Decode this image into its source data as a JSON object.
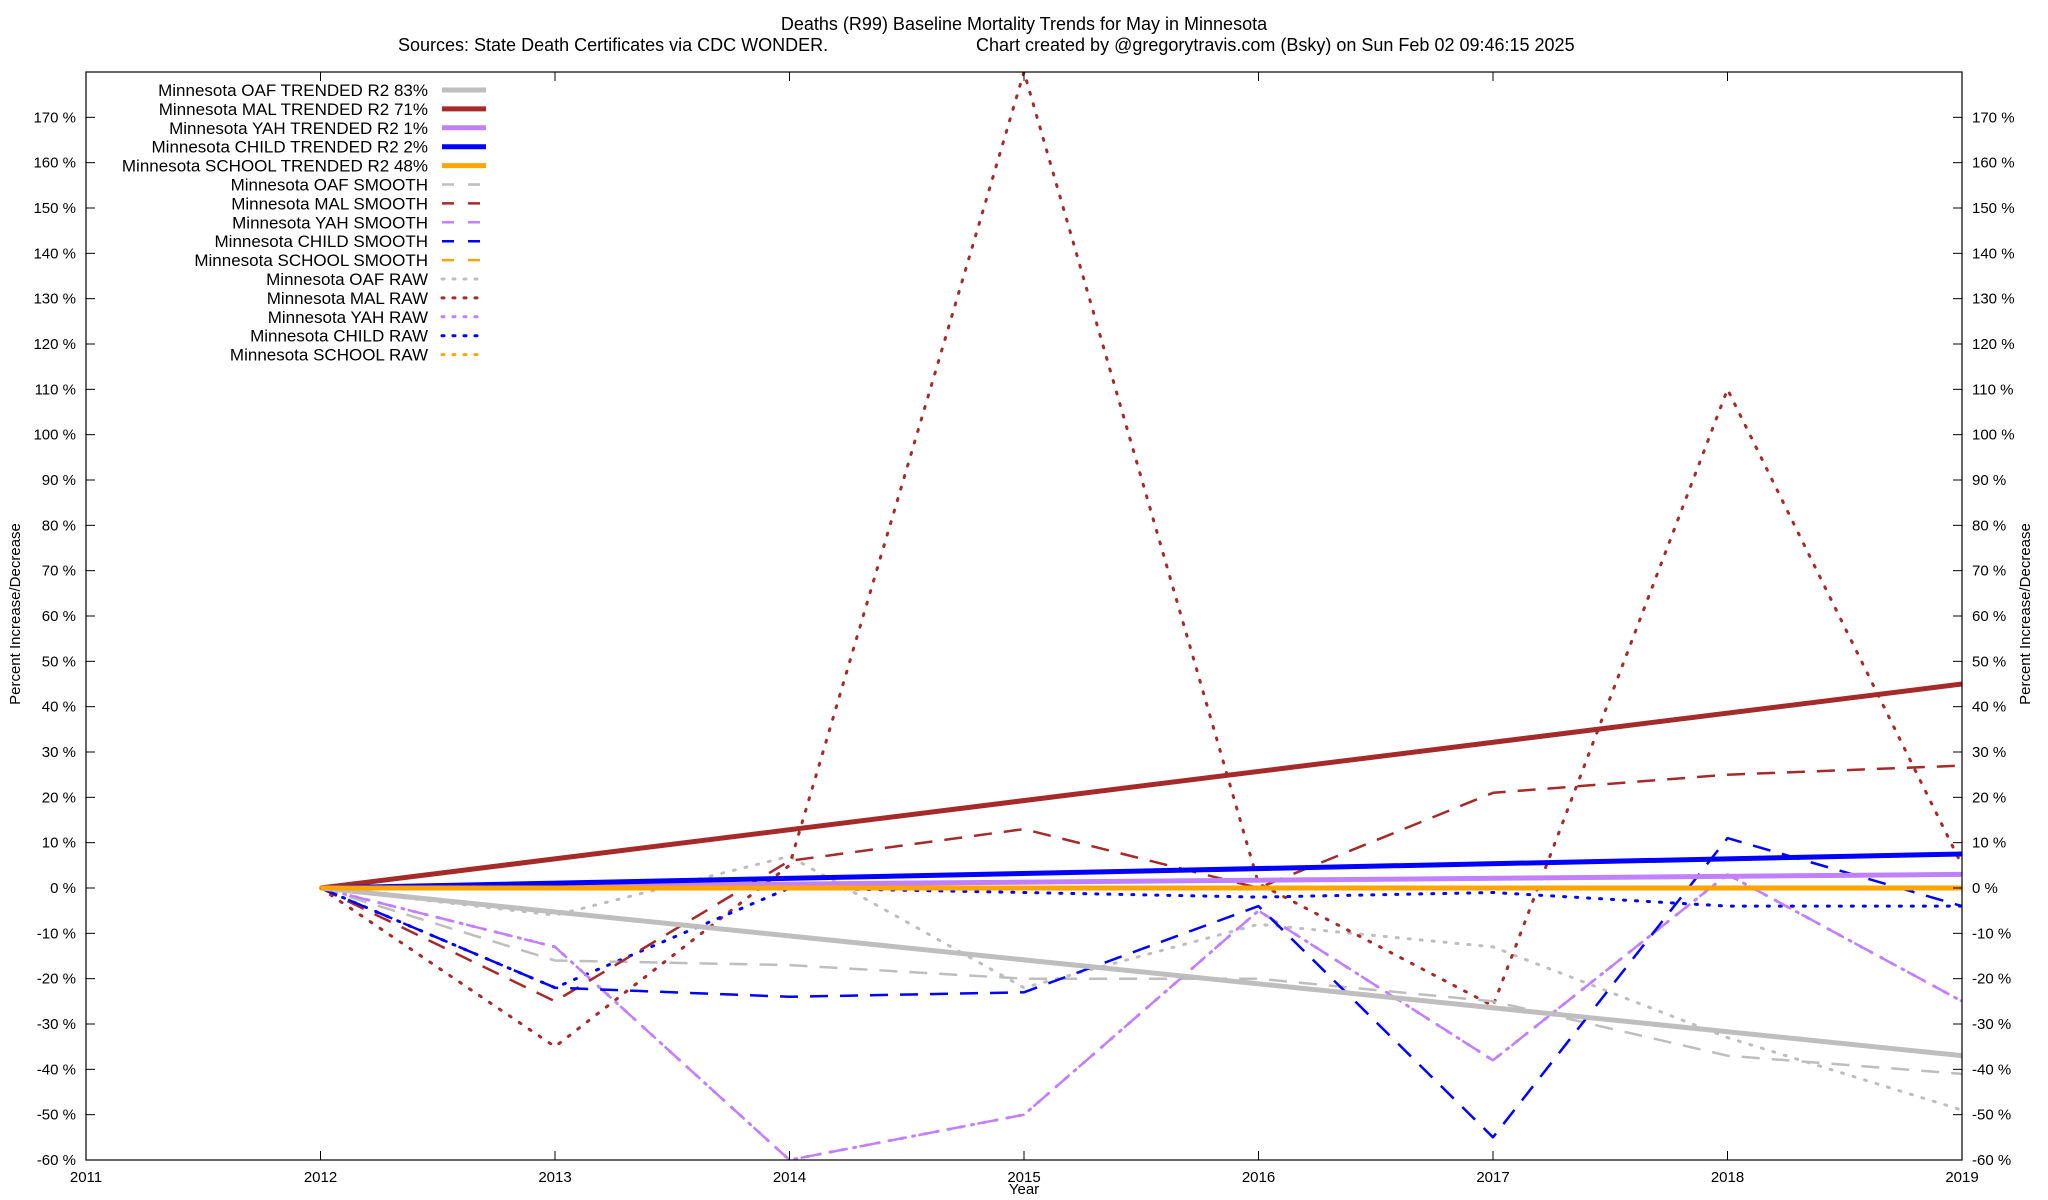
{
  "chart_data": {
    "type": "line",
    "title": "Deaths (R99)  Baseline Mortality Trends for May in Minnesota",
    "subtitle_left": "Sources: State Death Certificates via CDC WONDER.",
    "subtitle_right": "Chart created by @gregorytravis.com (Bsky) on Sun Feb 02 09:46:15 2025",
    "xlabel": "Year",
    "ylabel": "Percent Increase/Decrease",
    "y2label": "Percent Increase/Decrease",
    "xlim": [
      2011,
      2019
    ],
    "ylim": [
      -60,
      180
    ],
    "x_ticks": [
      "2011",
      "2012",
      "2013",
      "2014",
      "2015",
      "2016",
      "2017",
      "2018",
      "2019"
    ],
    "y_ticks": [
      "-60 %",
      "-50 %",
      "-40 %",
      "-30 %",
      "-20 %",
      "-10 %",
      "0 %",
      "10 %",
      "20 %",
      "30 %",
      "40 %",
      "50 %",
      "60 %",
      "70 %",
      "80 %",
      "90 %",
      "100 %",
      "110 %",
      "120 %",
      "130 %",
      "140 %",
      "150 %",
      "160 %",
      "170 %"
    ],
    "y_tick_values": [
      -60,
      -50,
      -40,
      -30,
      -20,
      -10,
      0,
      10,
      20,
      30,
      40,
      50,
      60,
      70,
      80,
      90,
      100,
      110,
      120,
      130,
      140,
      150,
      160,
      170
    ],
    "legend_position": "top-left",
    "series": [
      {
        "name": "Minnesota OAF TRENDED R2  83%",
        "style": "trend",
        "color": "#bebebe",
        "x": [
          2012,
          2019
        ],
        "values": [
          0,
          -37
        ]
      },
      {
        "name": "Minnesota MAL TRENDED R2  71%",
        "style": "trend",
        "color": "#a52a2a",
        "x": [
          2012,
          2019
        ],
        "values": [
          0,
          45
        ]
      },
      {
        "name": "Minnesota YAH TRENDED R2   1%",
        "style": "trend",
        "color": "#c080ff",
        "x": [
          2012,
          2019
        ],
        "values": [
          0,
          3
        ]
      },
      {
        "name": "Minnesota CHILD TRENDED R2   2%",
        "style": "trend",
        "color": "#0000ff",
        "x": [
          2012,
          2019
        ],
        "values": [
          0,
          7.5
        ]
      },
      {
        "name": "Minnesota SCHOOL TRENDED R2  48%",
        "style": "trend",
        "color": "#ffa500",
        "x": [
          2012,
          2019
        ],
        "values": [
          0,
          0
        ]
      },
      {
        "name": "Minnesota OAF SMOOTH",
        "style": "smooth",
        "color": "#bebebe",
        "x": [
          2012,
          2013,
          2014,
          2015,
          2016,
          2017,
          2018,
          2019
        ],
        "values": [
          0,
          -16,
          -17,
          -20,
          -20,
          -25,
          -37,
          -41
        ]
      },
      {
        "name": "Minnesota MAL SMOOTH",
        "style": "smooth",
        "color": "#a52a2a",
        "x": [
          2012,
          2013,
          2014,
          2015,
          2016,
          2017,
          2018,
          2019
        ],
        "values": [
          0,
          -25,
          6,
          13,
          0,
          21,
          25,
          27
        ]
      },
      {
        "name": "Minnesota YAH SMOOTH",
        "style": "smooth",
        "color": "#c080ff",
        "x": [
          2012,
          2013,
          2014,
          2015,
          2016,
          2017,
          2018,
          2019
        ],
        "values": [
          0,
          -13,
          -60,
          -50,
          -5,
          -38,
          3,
          -25
        ]
      },
      {
        "name": "Minnesota CHILD SMOOTH",
        "style": "smooth",
        "color": "#0000ff",
        "x": [
          2012,
          2013,
          2014,
          2015,
          2016,
          2017,
          2018,
          2019
        ],
        "values": [
          0,
          -22,
          -24,
          -23,
          -4,
          -55,
          11,
          -4
        ]
      },
      {
        "name": "Minnesota SCHOOL SMOOTH",
        "style": "smooth",
        "color": "#ffa500",
        "x": [
          2012,
          2013,
          2014,
          2015,
          2016,
          2017,
          2018,
          2019
        ],
        "values": [
          0,
          0,
          0,
          0,
          0,
          0,
          0,
          0
        ]
      },
      {
        "name": "Minnesota OAF RAW",
        "style": "raw",
        "color": "#bebebe",
        "x": [
          2012,
          2013,
          2014,
          2015,
          2016,
          2017,
          2018,
          2019
        ],
        "values": [
          0,
          -6,
          7,
          -22,
          -8,
          -13,
          -33,
          -49
        ]
      },
      {
        "name": "Minnesota MAL RAW",
        "style": "raw",
        "color": "#a52a2a",
        "x": [
          2012,
          2013,
          2014,
          2015,
          2016,
          2017,
          2018,
          2019
        ],
        "values": [
          0,
          -35,
          5,
          180,
          1,
          -26,
          110,
          5
        ]
      },
      {
        "name": "Minnesota YAH RAW",
        "style": "raw",
        "color": "#c080ff",
        "x": [
          2012,
          2013,
          2014,
          2015,
          2016,
          2017,
          2018,
          2019
        ],
        "values": [
          0,
          -13,
          -60,
          -50,
          -5,
          -38,
          3,
          -25
        ]
      },
      {
        "name": "Minnesota CHILD RAW",
        "style": "raw",
        "color": "#0000ff",
        "x": [
          2012,
          2013,
          2014,
          2015,
          2016,
          2017,
          2018,
          2019
        ],
        "values": [
          0,
          -22,
          0,
          -1,
          -2,
          -1,
          -4,
          -4
        ]
      },
      {
        "name": "Minnesota SCHOOL RAW",
        "style": "raw",
        "color": "#ffa500",
        "x": [
          2012,
          2013,
          2014,
          2015,
          2016,
          2017,
          2018,
          2019
        ],
        "values": [
          0,
          0,
          0,
          0,
          0,
          0,
          0,
          0
        ]
      }
    ]
  }
}
